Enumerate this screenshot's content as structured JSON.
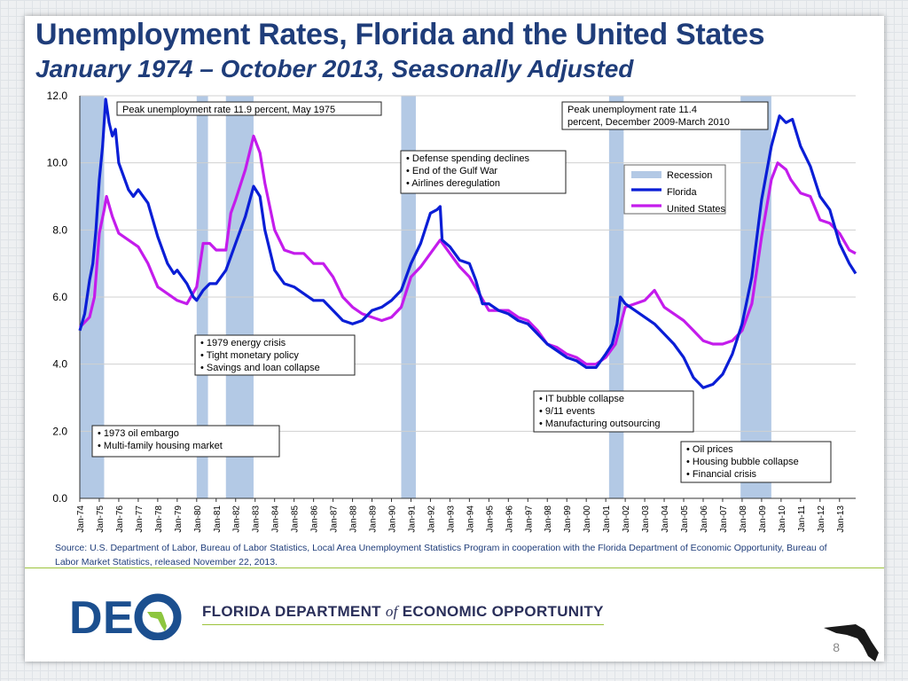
{
  "slide": {
    "title": "Unemployment Rates, Florida and the United States",
    "subtitle": "January 1974 – October 2013, Seasonally Adjusted",
    "source": "Source:  U.S. Department of Labor, Bureau of Labor Statistics, Local Area Unemployment Statistics Program in cooperation with the Florida Department of Economic Opportunity, Bureau of Labor Market Statistics, released November 22, 2013.",
    "org_prefix": "FLORIDA DEPARTMENT ",
    "org_of": "of",
    "org_suffix": " ECONOMIC OPPORTUNITY",
    "logo_letters": [
      "D",
      "E"
    ],
    "page_number": "8"
  },
  "colors": {
    "florida": "#0a1ed6",
    "united_states": "#c41cec",
    "recession": "#b3c9e5",
    "title": "#1f3d7a",
    "accent": "#9cc33b"
  },
  "chart_data": {
    "type": "line",
    "xlabel": "",
    "ylabel": "",
    "ylim": [
      0,
      12
    ],
    "yticks": [
      "0.0",
      "2.0",
      "4.0",
      "6.0",
      "8.0",
      "10.0",
      "12.0"
    ],
    "xticks": [
      "Jan-74",
      "Jan-75",
      "Jan-76",
      "Jan-77",
      "Jan-78",
      "Jan-79",
      "Jan-80",
      "Jan-81",
      "Jan-82",
      "Jan-83",
      "Jan-84",
      "Jan-85",
      "Jan-86",
      "Jan-87",
      "Jan-88",
      "Jan-89",
      "Jan-90",
      "Jan-91",
      "Jan-92",
      "Jan-93",
      "Jan-94",
      "Jan-95",
      "Jan-96",
      "Jan-97",
      "Jan-98",
      "Jan-99",
      "Jan-00",
      "Jan-01",
      "Jan-02",
      "Jan-03",
      "Jan-04",
      "Jan-05",
      "Jan-06",
      "Jan-07",
      "Jan-08",
      "Jan-09",
      "Jan-10",
      "Jan-11",
      "Jan-12",
      "Jan-13"
    ],
    "x_unit": "year",
    "x_range": [
      1974.0,
      2013.83
    ],
    "grid": "horizontal",
    "legend": {
      "position": "top-right",
      "entries": [
        "Recession",
        "Florida",
        "United States"
      ]
    },
    "recessions": [
      {
        "start": 1974.0,
        "end": 1975.25
      },
      {
        "start": 1980.0,
        "end": 1980.58
      },
      {
        "start": 1981.5,
        "end": 1982.92
      },
      {
        "start": 1990.5,
        "end": 1991.25
      },
      {
        "start": 2001.17,
        "end": 2001.92
      },
      {
        "start": 2007.92,
        "end": 2009.5
      }
    ],
    "series": [
      {
        "name": "Florida",
        "points": [
          [
            1974.0,
            5.0
          ],
          [
            1974.25,
            5.5
          ],
          [
            1974.5,
            6.5
          ],
          [
            1974.67,
            7.0
          ],
          [
            1974.83,
            8.0
          ],
          [
            1975.0,
            9.5
          ],
          [
            1975.17,
            10.5
          ],
          [
            1975.33,
            11.9
          ],
          [
            1975.5,
            11.2
          ],
          [
            1975.67,
            10.8
          ],
          [
            1975.83,
            11.0
          ],
          [
            1976.0,
            10.0
          ],
          [
            1976.5,
            9.2
          ],
          [
            1976.75,
            9.0
          ],
          [
            1977.0,
            9.2
          ],
          [
            1977.5,
            8.8
          ],
          [
            1978.0,
            7.8
          ],
          [
            1978.5,
            7.0
          ],
          [
            1978.83,
            6.7
          ],
          [
            1979.0,
            6.8
          ],
          [
            1979.5,
            6.4
          ],
          [
            1979.83,
            6.0
          ],
          [
            1980.0,
            5.9
          ],
          [
            1980.33,
            6.2
          ],
          [
            1980.67,
            6.4
          ],
          [
            1981.0,
            6.4
          ],
          [
            1981.5,
            6.8
          ],
          [
            1982.0,
            7.6
          ],
          [
            1982.5,
            8.4
          ],
          [
            1982.92,
            9.3
          ],
          [
            1983.25,
            9.0
          ],
          [
            1983.5,
            8.0
          ],
          [
            1984.0,
            6.8
          ],
          [
            1984.5,
            6.4
          ],
          [
            1985.0,
            6.3
          ],
          [
            1985.5,
            6.1
          ],
          [
            1986.0,
            5.9
          ],
          [
            1986.5,
            5.9
          ],
          [
            1987.0,
            5.6
          ],
          [
            1987.5,
            5.3
          ],
          [
            1988.0,
            5.2
          ],
          [
            1988.5,
            5.3
          ],
          [
            1989.0,
            5.6
          ],
          [
            1989.5,
            5.7
          ],
          [
            1990.0,
            5.9
          ],
          [
            1990.5,
            6.2
          ],
          [
            1991.0,
            7.0
          ],
          [
            1991.5,
            7.6
          ],
          [
            1992.0,
            8.5
          ],
          [
            1992.33,
            8.6
          ],
          [
            1992.5,
            8.7
          ],
          [
            1992.6,
            7.7
          ],
          [
            1993.0,
            7.5
          ],
          [
            1993.5,
            7.1
          ],
          [
            1994.0,
            7.0
          ],
          [
            1994.33,
            6.5
          ],
          [
            1994.67,
            5.8
          ],
          [
            1995.0,
            5.8
          ],
          [
            1995.5,
            5.6
          ],
          [
            1996.0,
            5.5
          ],
          [
            1996.5,
            5.3
          ],
          [
            1997.0,
            5.2
          ],
          [
            1997.5,
            4.9
          ],
          [
            1998.0,
            4.6
          ],
          [
            1998.5,
            4.4
          ],
          [
            1999.0,
            4.2
          ],
          [
            1999.5,
            4.1
          ],
          [
            2000.0,
            3.9
          ],
          [
            2000.5,
            3.9
          ],
          [
            2001.0,
            4.3
          ],
          [
            2001.33,
            4.6
          ],
          [
            2001.58,
            5.2
          ],
          [
            2001.75,
            6.0
          ],
          [
            2002.0,
            5.8
          ],
          [
            2002.5,
            5.6
          ],
          [
            2003.0,
            5.4
          ],
          [
            2003.5,
            5.2
          ],
          [
            2004.0,
            4.9
          ],
          [
            2004.5,
            4.6
          ],
          [
            2005.0,
            4.2
          ],
          [
            2005.5,
            3.6
          ],
          [
            2006.0,
            3.3
          ],
          [
            2006.5,
            3.4
          ],
          [
            2007.0,
            3.7
          ],
          [
            2007.5,
            4.3
          ],
          [
            2008.0,
            5.2
          ],
          [
            2008.5,
            6.6
          ],
          [
            2009.0,
            8.9
          ],
          [
            2009.5,
            10.5
          ],
          [
            2009.92,
            11.4
          ],
          [
            2010.25,
            11.2
          ],
          [
            2010.58,
            11.3
          ],
          [
            2011.0,
            10.5
          ],
          [
            2011.5,
            9.9
          ],
          [
            2012.0,
            9.0
          ],
          [
            2012.5,
            8.6
          ],
          [
            2013.0,
            7.6
          ],
          [
            2013.5,
            7.0
          ],
          [
            2013.83,
            6.7
          ]
        ]
      },
      {
        "name": "United States",
        "points": [
          [
            1974.0,
            5.1
          ],
          [
            1974.5,
            5.4
          ],
          [
            1974.75,
            6.0
          ],
          [
            1975.0,
            7.9
          ],
          [
            1975.25,
            8.6
          ],
          [
            1975.37,
            9.0
          ],
          [
            1975.67,
            8.4
          ],
          [
            1976.0,
            7.9
          ],
          [
            1976.5,
            7.7
          ],
          [
            1977.0,
            7.5
          ],
          [
            1977.5,
            7.0
          ],
          [
            1978.0,
            6.3
          ],
          [
            1978.5,
            6.1
          ],
          [
            1979.0,
            5.9
          ],
          [
            1979.5,
            5.8
          ],
          [
            1980.0,
            6.3
          ],
          [
            1980.33,
            7.6
          ],
          [
            1980.67,
            7.6
          ],
          [
            1981.0,
            7.4
          ],
          [
            1981.5,
            7.4
          ],
          [
            1981.75,
            8.5
          ],
          [
            1982.0,
            8.9
          ],
          [
            1982.5,
            9.8
          ],
          [
            1982.92,
            10.8
          ],
          [
            1983.25,
            10.3
          ],
          [
            1983.5,
            9.4
          ],
          [
            1984.0,
            8.0
          ],
          [
            1984.5,
            7.4
          ],
          [
            1985.0,
            7.3
          ],
          [
            1985.5,
            7.3
          ],
          [
            1986.0,
            7.0
          ],
          [
            1986.5,
            7.0
          ],
          [
            1987.0,
            6.6
          ],
          [
            1987.5,
            6.0
          ],
          [
            1988.0,
            5.7
          ],
          [
            1988.5,
            5.5
          ],
          [
            1989.0,
            5.4
          ],
          [
            1989.5,
            5.3
          ],
          [
            1990.0,
            5.4
          ],
          [
            1990.5,
            5.7
          ],
          [
            1991.0,
            6.6
          ],
          [
            1991.5,
            6.9
          ],
          [
            1992.0,
            7.3
          ],
          [
            1992.5,
            7.7
          ],
          [
            1993.0,
            7.3
          ],
          [
            1993.5,
            6.9
          ],
          [
            1994.0,
            6.6
          ],
          [
            1994.5,
            6.1
          ],
          [
            1995.0,
            5.6
          ],
          [
            1995.5,
            5.6
          ],
          [
            1996.0,
            5.6
          ],
          [
            1996.5,
            5.4
          ],
          [
            1997.0,
            5.3
          ],
          [
            1997.5,
            5.0
          ],
          [
            1998.0,
            4.6
          ],
          [
            1998.5,
            4.5
          ],
          [
            1999.0,
            4.3
          ],
          [
            1999.5,
            4.2
          ],
          [
            2000.0,
            4.0
          ],
          [
            2000.5,
            4.0
          ],
          [
            2001.0,
            4.2
          ],
          [
            2001.5,
            4.6
          ],
          [
            2002.0,
            5.7
          ],
          [
            2002.5,
            5.8
          ],
          [
            2003.0,
            5.9
          ],
          [
            2003.5,
            6.2
          ],
          [
            2004.0,
            5.7
          ],
          [
            2004.5,
            5.5
          ],
          [
            2005.0,
            5.3
          ],
          [
            2005.5,
            5.0
          ],
          [
            2006.0,
            4.7
          ],
          [
            2006.5,
            4.6
          ],
          [
            2007.0,
            4.6
          ],
          [
            2007.5,
            4.7
          ],
          [
            2008.0,
            5.0
          ],
          [
            2008.5,
            5.8
          ],
          [
            2009.0,
            7.8
          ],
          [
            2009.5,
            9.5
          ],
          [
            2009.83,
            10.0
          ],
          [
            2010.25,
            9.8
          ],
          [
            2010.5,
            9.5
          ],
          [
            2011.0,
            9.1
          ],
          [
            2011.5,
            9.0
          ],
          [
            2012.0,
            8.3
          ],
          [
            2012.5,
            8.2
          ],
          [
            2013.0,
            7.9
          ],
          [
            2013.5,
            7.4
          ],
          [
            2013.83,
            7.3
          ]
        ]
      }
    ],
    "annotations": [
      {
        "id": "peak-1975",
        "lines": [
          "Peak unemployment rate 11.9 percent, May 1975"
        ]
      },
      {
        "id": "peak-2009",
        "lines": [
          "Peak unemployment rate 11.4",
          "percent, December 2009-March 2010"
        ]
      },
      {
        "id": "early-90s",
        "lines": [
          "• Defense spending declines",
          "• End of the Gulf War",
          "• Airlines deregulation"
        ]
      },
      {
        "id": "early-80s",
        "lines": [
          "• 1979 energy crisis",
          "• Tight monetary policy",
          "• Savings and loan collapse"
        ]
      },
      {
        "id": "early-00s",
        "lines": [
          "• IT bubble collapse",
          "• 9/11 events",
          "• Manufacturing outsourcing"
        ]
      },
      {
        "id": "mid-70s",
        "lines": [
          "• 1973 oil embargo",
          "• Multi-family housing market"
        ]
      },
      {
        "id": "late-00s",
        "lines": [
          "• Oil prices",
          "• Housing bubble collapse",
          "• Financial crisis"
        ]
      }
    ]
  }
}
